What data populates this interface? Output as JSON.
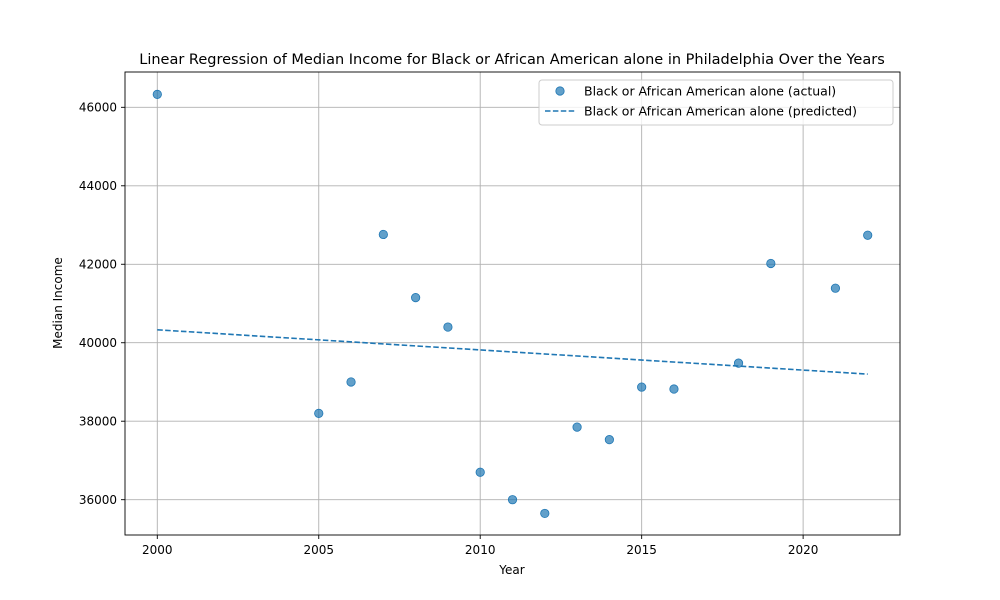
{
  "chart_data": {
    "type": "scatter",
    "title": "Linear Regression of Median Income for Black or African American alone in Philadelphia Over the Years",
    "xlabel": "Year",
    "ylabel": "Median Income",
    "xlim": [
      1999,
      2023
    ],
    "ylim": [
      35100,
      46900
    ],
    "x_ticks": [
      2000,
      2005,
      2010,
      2015,
      2020
    ],
    "y_ticks": [
      36000,
      38000,
      40000,
      42000,
      44000,
      46000
    ],
    "grid": true,
    "legend_position": "top-right",
    "colors": {
      "series": "#1f77b4"
    },
    "series": [
      {
        "name": "Black or African American alone (actual)",
        "kind": "scatter",
        "x": [
          2000,
          2005,
          2006,
          2007,
          2008,
          2009,
          2010,
          2011,
          2012,
          2013,
          2014,
          2015,
          2016,
          2018,
          2019,
          2021,
          2022
        ],
        "y": [
          46330,
          38200,
          39000,
          42760,
          41150,
          40400,
          36700,
          36000,
          35650,
          37850,
          37530,
          38870,
          38820,
          39480,
          42020,
          41390,
          42740
        ]
      },
      {
        "name": "Black or African American alone (predicted)",
        "kind": "line",
        "style": "dashed",
        "x": [
          2000,
          2022
        ],
        "y": [
          40330,
          39200
        ]
      }
    ]
  }
}
